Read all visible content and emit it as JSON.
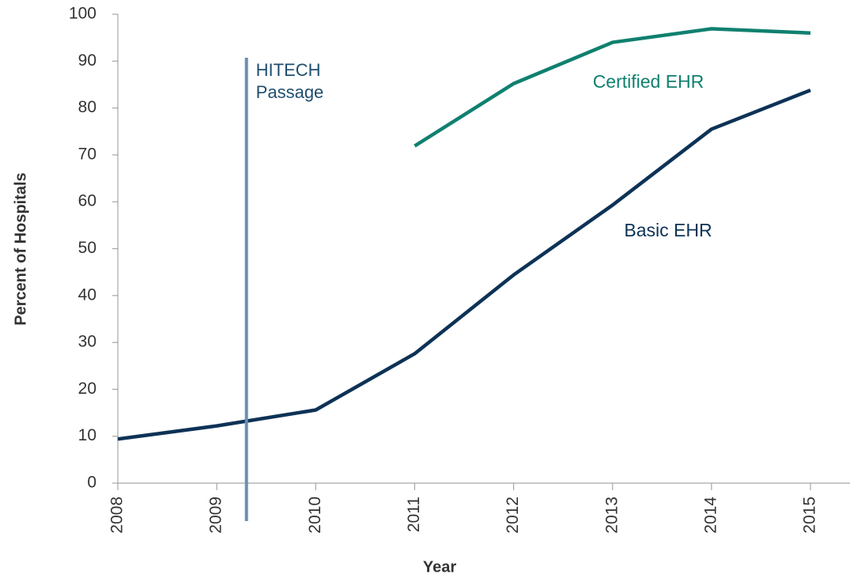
{
  "chart_data": {
    "type": "line",
    "x_label": "Year",
    "y_label": "Percent of Hospitals",
    "x": [
      2008,
      2009,
      2010,
      2011,
      2012,
      2013,
      2014,
      2015
    ],
    "series": [
      {
        "name": "Basic EHR",
        "color": "#0d3256",
        "values": [
          9.4,
          12.2,
          15.6,
          27.6,
          44.4,
          59.3,
          75.5,
          83.8
        ]
      },
      {
        "name": "Certified EHR",
        "color": "#10806f",
        "values": [
          null,
          null,
          null,
          71.9,
          85.2,
          94.0,
          96.9,
          96.0
        ]
      }
    ],
    "annotations": [
      {
        "x": 2009.3,
        "text": [
          "HITECH",
          "Passage"
        ],
        "color": "#6b8fae"
      }
    ],
    "xlim": [
      2008,
      2015
    ],
    "xticks": [
      2008,
      2009,
      2010,
      2011,
      2012,
      2013,
      2014,
      2015
    ],
    "ylim": [
      0,
      100
    ],
    "yticks": [
      0,
      10,
      20,
      30,
      40,
      50,
      60,
      70,
      80,
      90,
      100
    ],
    "grid": false
  }
}
